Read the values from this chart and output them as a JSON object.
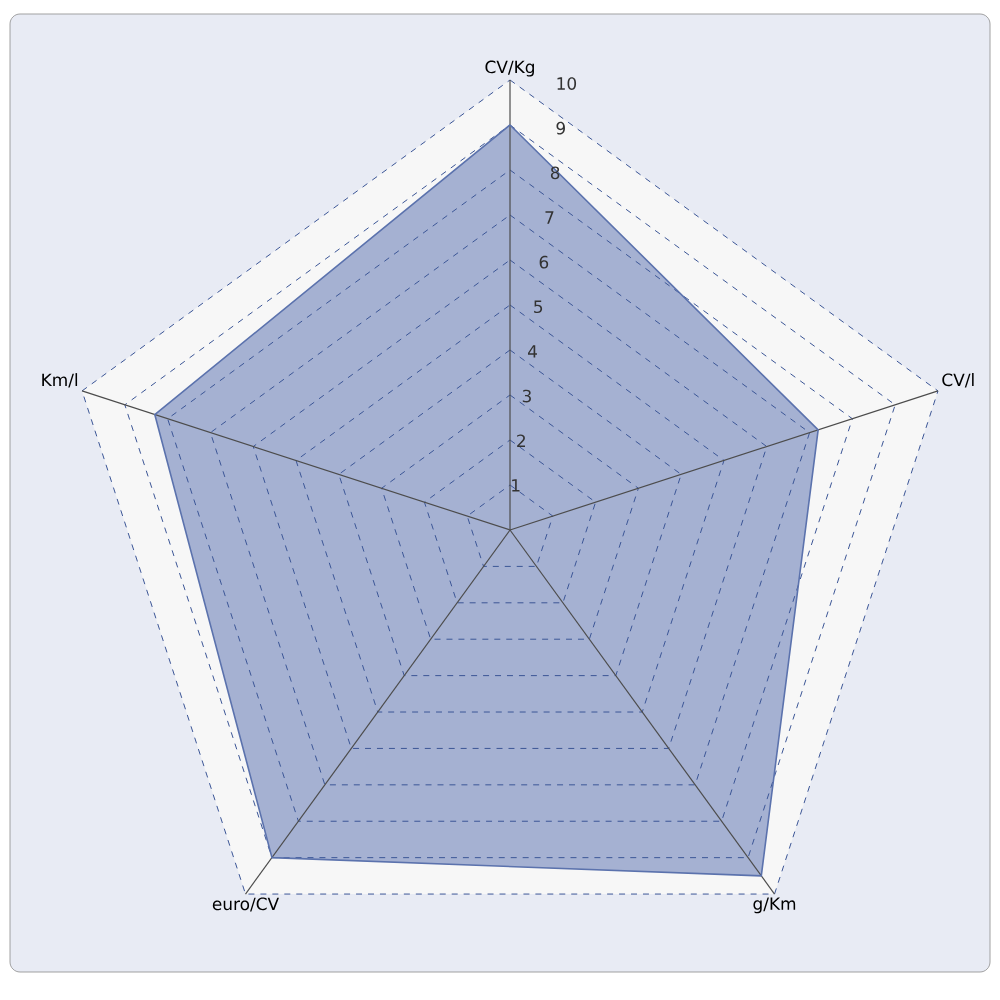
{
  "chart_data": {
    "type": "radar",
    "categories": [
      "CV/Kg",
      "CV/l",
      "g/Km",
      "euro/CV",
      "Km/l"
    ],
    "series": [
      {
        "color": "#5b72ad",
        "values": [
          9.0,
          7.2,
          9.5,
          9.0,
          8.3
        ]
      }
    ],
    "ylim": [
      0,
      10
    ],
    "yticks": [
      1,
      2,
      3,
      4,
      5,
      6,
      7,
      8,
      9,
      10
    ],
    "grid": true
  }
}
